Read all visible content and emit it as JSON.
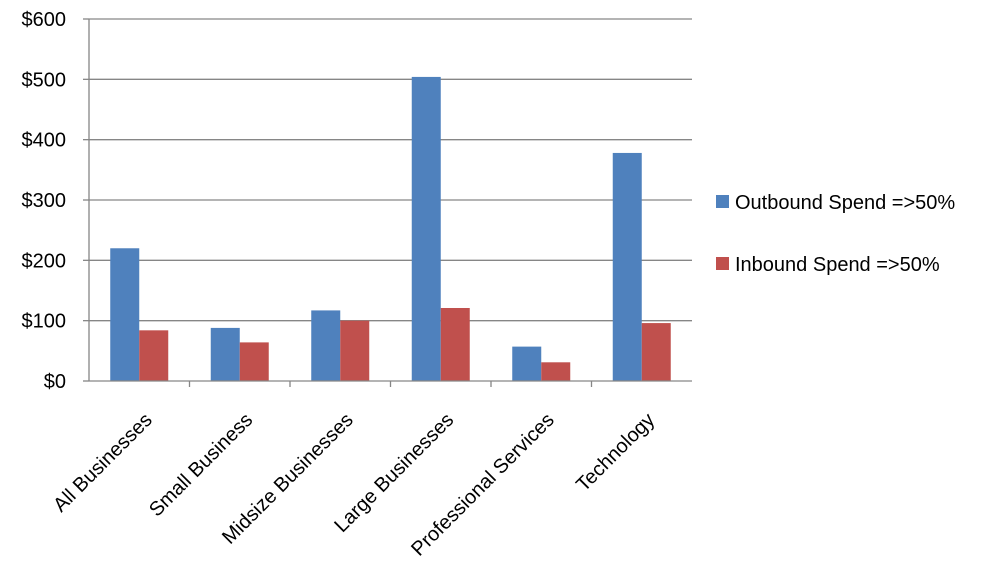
{
  "chart_data": {
    "type": "bar",
    "categories": [
      "All Businesses",
      "Small Business",
      "Midsize Businesses",
      "Large Businesses",
      "Professional Services",
      "Technology"
    ],
    "series": [
      {
        "name": "Outbound Spend =>50%",
        "values": [
          220,
          88,
          117,
          504,
          57,
          378
        ],
        "color": "#4F81BD"
      },
      {
        "name": "Inbound Spend =>50%",
        "values": [
          84,
          64,
          100,
          121,
          31,
          96
        ],
        "color": "#C0504D"
      }
    ],
    "y_ticks": [
      "$0",
      "$100",
      "$200",
      "$300",
      "$400",
      "$500",
      "$600"
    ],
    "ylim": [
      0,
      600
    ],
    "ytick_step": 100,
    "grid": true,
    "legend_position": "right",
    "title": "",
    "xlabel": "",
    "ylabel": ""
  }
}
